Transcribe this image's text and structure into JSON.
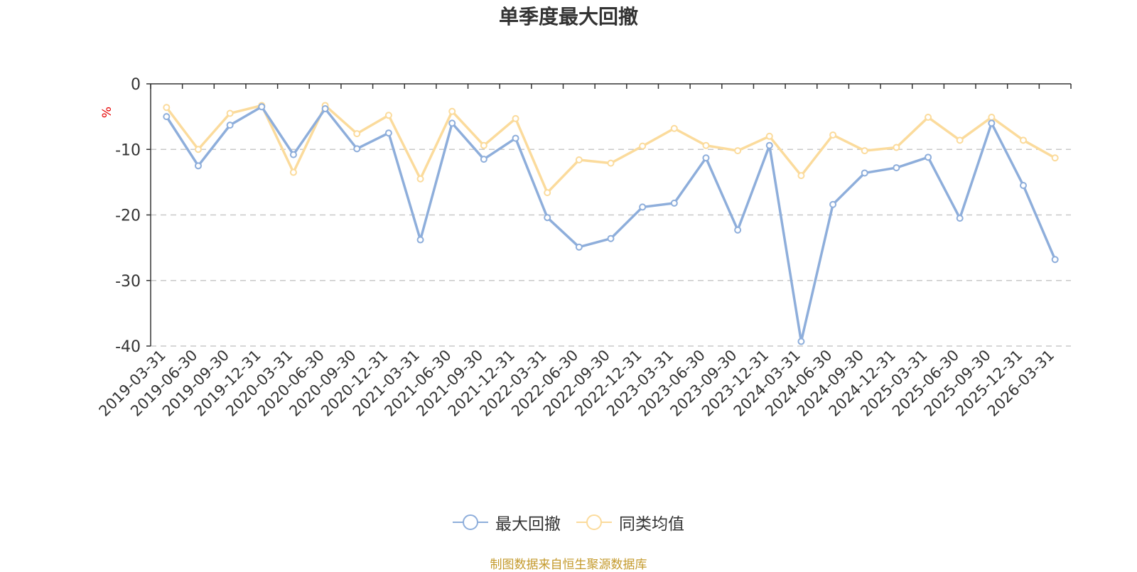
{
  "title": "单季度最大回撤",
  "source_note": "制图数据来自恒生聚源数据库",
  "colors": {
    "series_1": "#8eaedb",
    "series_2": "#fbdb9c",
    "unit": "#e60000",
    "grid": "#c8c8c8",
    "axis": "#333333"
  },
  "chart_data": {
    "type": "line",
    "title": "单季度最大回撤",
    "ylabel": "%",
    "ylim": [
      -40,
      0
    ],
    "yticks": [
      0,
      -10,
      -20,
      -30,
      -40
    ],
    "ytick_labels": [
      "0",
      "-10",
      "-20",
      "-30",
      "-40"
    ],
    "categories": [
      "2019-03-31",
      "2019-06-30",
      "2019-09-30",
      "2019-12-31",
      "2020-03-31",
      "2020-06-30",
      "2020-09-30",
      "2020-12-31",
      "2021-03-31",
      "2021-06-30",
      "2021-09-30",
      "2021-12-31",
      "2022-03-31",
      "2022-06-30",
      "2022-09-30",
      "2022-12-31",
      "2023-03-31",
      "2023-06-30",
      "2023-09-30",
      "2023-12-31",
      "2024-03-31",
      "2024-06-30",
      "2024-09-30",
      "2024-12-31",
      "2025-03-31",
      "2025-06-30",
      "2025-09-30",
      "2025-12-31",
      "2026-03-31"
    ],
    "series": [
      {
        "name": "最大回撤",
        "values": [
          -5.0,
          -12.5,
          -6.3,
          -3.5,
          -10.8,
          -3.8,
          -9.9,
          -7.5,
          -23.8,
          -6.0,
          -11.5,
          -8.3,
          -20.4,
          -24.9,
          -23.6,
          -18.8,
          -18.2,
          -11.3,
          -22.3,
          -9.4,
          -39.3,
          -18.4,
          -13.6,
          -12.8,
          -11.2,
          -20.5,
          -6.0,
          -15.5,
          -26.8
        ]
      },
      {
        "name": "同类均值",
        "values": [
          -3.6,
          -10.0,
          -4.5,
          -3.3,
          -13.5,
          -3.3,
          -7.6,
          -4.8,
          -14.5,
          -4.2,
          -9.4,
          -5.3,
          -16.6,
          -11.6,
          -12.1,
          -9.5,
          -6.8,
          -9.4,
          -10.2,
          -8.0,
          -14.0,
          -7.8,
          -10.2,
          -9.7,
          -5.1,
          -8.6,
          -5.1,
          -8.6,
          -11.3
        ]
      }
    ],
    "legend_position": "bottom-center",
    "grid": "horizontal-dashed"
  }
}
